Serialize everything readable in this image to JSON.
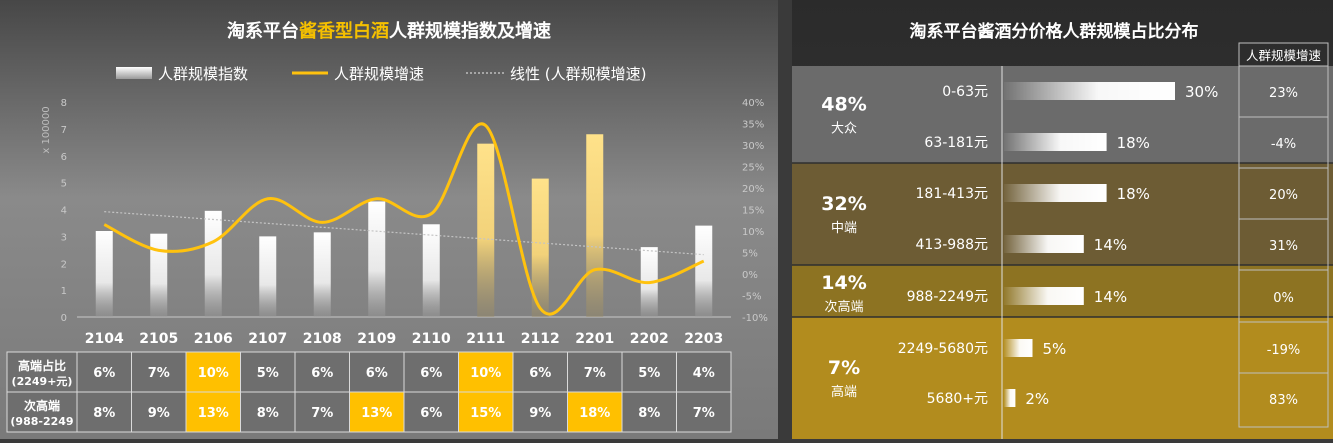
{
  "colors": {
    "gold": "#f5c000",
    "line": "#ffc20e",
    "bar_top": "#ffffff",
    "highlight": "#ffc000"
  },
  "chart_data": [
    {
      "type": "bar",
      "title_parts": [
        {
          "text": "淘系平台",
          "highlight": false
        },
        {
          "text": "酱香型白酒",
          "highlight": true
        },
        {
          "text": "人群规模指数及增速",
          "highlight": false
        }
      ],
      "legend": [
        "人群规模指数",
        "人群规模增速",
        "线性 (人群规模增速)"
      ],
      "left_axis_unit": "x 100000",
      "categories": [
        "2104",
        "2105",
        "2106",
        "2107",
        "2108",
        "2109",
        "2110",
        "2111",
        "2112",
        "2201",
        "2202",
        "2203"
      ],
      "bar_values": [
        3.2,
        3.1,
        3.95,
        3.0,
        3.15,
        4.3,
        3.45,
        6.45,
        5.15,
        6.8,
        2.6,
        3.4
      ],
      "bar_highlight": [
        false,
        false,
        false,
        false,
        false,
        false,
        false,
        true,
        true,
        true,
        false,
        false
      ],
      "growth_values": [
        11.5,
        5.5,
        7.5,
        17.5,
        12.0,
        17.5,
        14.0,
        34.5,
        -8.0,
        1.0,
        -2.0,
        3.0
      ],
      "trend_start": 14.5,
      "trend_end": 4.5,
      "left_axis": {
        "min": 0,
        "max": 8,
        "ticks": [
          "0",
          "1",
          "2",
          "3",
          "4",
          "5",
          "6",
          "7",
          "8"
        ]
      },
      "right_axis": {
        "min": -10,
        "max": 40,
        "ticks": [
          "-10%",
          "-5%",
          "0%",
          "5%",
          "10%",
          "15%",
          "20%",
          "25%",
          "30%",
          "35%",
          "40%"
        ]
      },
      "table_rows": [
        {
          "label_line1": "高端占比",
          "label_line2": "(2249+元)",
          "cells": [
            "6%",
            "7%",
            "10%",
            "5%",
            "6%",
            "6%",
            "6%",
            "10%",
            "6%",
            "7%",
            "5%",
            "4%"
          ],
          "highlight": [
            false,
            false,
            true,
            false,
            false,
            false,
            false,
            true,
            false,
            false,
            false,
            false
          ]
        },
        {
          "label_line1": "次高端",
          "label_line2": "(988-2249",
          "cells": [
            "8%",
            "9%",
            "13%",
            "8%",
            "7%",
            "13%",
            "6%",
            "15%",
            "9%",
            "18%",
            "8%",
            "7%"
          ],
          "highlight": [
            false,
            false,
            true,
            false,
            false,
            true,
            false,
            true,
            false,
            true,
            false,
            false
          ]
        }
      ]
    },
    {
      "type": "bar",
      "title": "淘系平台酱酒分价格人群规模占比分布",
      "growth_header": "人群规模增速",
      "groups": [
        {
          "pct": "48%",
          "name": "大众",
          "bg": "#6b6b6b"
        },
        {
          "pct": "32%",
          "name": "中端",
          "bg": "#6d5c34"
        },
        {
          "pct": "14%",
          "name": "次高端",
          "bg": "#8d7322"
        },
        {
          "pct": "7%",
          "name": "高端",
          "bg": "#b28c1e"
        }
      ],
      "rows": [
        {
          "group": 0,
          "label": "0-63元",
          "value": 30,
          "value_label": "30%",
          "growth": "23%"
        },
        {
          "group": 0,
          "label": "63-181元",
          "value": 18,
          "value_label": "18%",
          "growth": "-4%"
        },
        {
          "group": 1,
          "label": "181-413元",
          "value": 18,
          "value_label": "18%",
          "growth": "20%"
        },
        {
          "group": 1,
          "label": "413-988元",
          "value": 14,
          "value_label": "14%",
          "growth": "31%"
        },
        {
          "group": 2,
          "label": "988-2249元",
          "value": 14,
          "value_label": "14%",
          "growth": "0%"
        },
        {
          "group": 3,
          "label": "2249-5680元",
          "value": 5,
          "value_label": "5%",
          "growth": "-19%"
        },
        {
          "group": 3,
          "label": "5680+元",
          "value": 2,
          "value_label": "2%",
          "growth": "83%"
        }
      ]
    }
  ]
}
